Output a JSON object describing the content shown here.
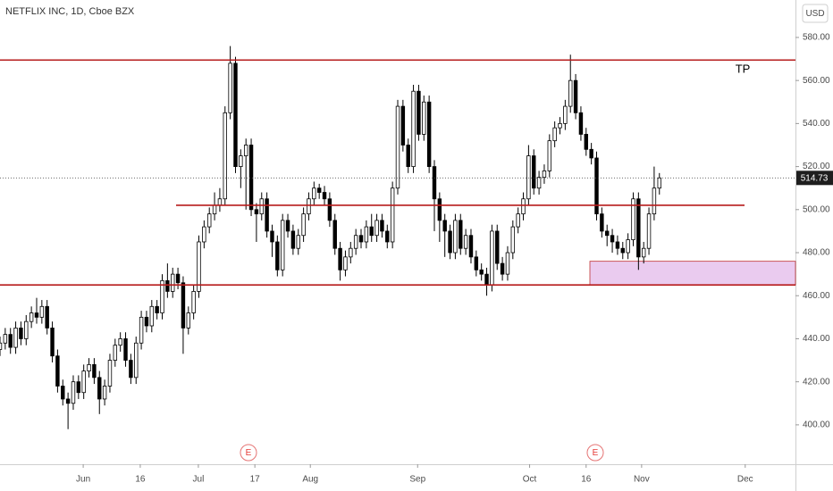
{
  "chart_data": {
    "type": "candlestick",
    "title": "NETFLIX INC, 1D, Cboe BZX",
    "currency": "USD",
    "annotation": "TP",
    "events": [
      "E",
      "E"
    ],
    "up_color": "#ffffff",
    "down_color": "#000000",
    "level_color": "#b71c1c",
    "zone_color": "#e8c6ee",
    "levels": [
      569.5,
      502,
      465
    ],
    "zone": [
      465,
      476
    ],
    "xlim": [
      0,
      152
    ],
    "ylim": [
      381.7,
      597.4
    ],
    "yticks": [
      {
        "value": 400,
        "label": "400.00"
      },
      {
        "value": 420,
        "label": "420.00"
      },
      {
        "value": 440,
        "label": "440.00"
      },
      {
        "value": 460,
        "label": "460.00"
      },
      {
        "value": 480,
        "label": "480.00"
      },
      {
        "value": 500,
        "label": "500.00"
      },
      {
        "value": 520,
        "label": "520.00"
      },
      {
        "value": 540,
        "label": "540.00"
      },
      {
        "value": 560,
        "label": "560.00"
      },
      {
        "value": 580,
        "label": "580.00"
      }
    ],
    "xticks": [
      {
        "value": 15.9,
        "label": "Jun"
      },
      {
        "value": 26.8,
        "label": "16"
      },
      {
        "value": 37.9,
        "label": "Jul"
      },
      {
        "value": 48.7,
        "label": "17"
      },
      {
        "value": 59.3,
        "label": "Aug"
      },
      {
        "value": 79.8,
        "label": "Sep"
      },
      {
        "value": 101.2,
        "label": "Oct"
      },
      {
        "value": 112,
        "label": "16"
      },
      {
        "value": 122.6,
        "label": "Nov"
      },
      {
        "value": 142.4,
        "label": "Dec"
      }
    ],
    "open": [
      435,
      438,
      442,
      436,
      445,
      440,
      448,
      452,
      450,
      455,
      445,
      432,
      418,
      412,
      410,
      420,
      415,
      425,
      428,
      422,
      412,
      418,
      430,
      437,
      440,
      430,
      422,
      438,
      450,
      446,
      455,
      452,
      467,
      462,
      470,
      466,
      445,
      452,
      462,
      485,
      492,
      498,
      502,
      505,
      545,
      568,
      520,
      525,
      530,
      500,
      498,
      505,
      490,
      485,
      472,
      495,
      490,
      482,
      488,
      498,
      505,
      510,
      508,
      505,
      495,
      482,
      472,
      478,
      482,
      488,
      485,
      492,
      488,
      495,
      490,
      485,
      510,
      548,
      530,
      520,
      555,
      535,
      550,
      520,
      505,
      495,
      490,
      480,
      495,
      482,
      488,
      478,
      472,
      470,
      465,
      490,
      475,
      470,
      480,
      492,
      498,
      505,
      525,
      510,
      515,
      518,
      532,
      538,
      540,
      548,
      560,
      545,
      535,
      528,
      524,
      498,
      490,
      488,
      485,
      482,
      480,
      486,
      505,
      478,
      482,
      498,
      510
    ],
    "high": [
      441,
      445,
      445,
      448,
      448,
      451,
      455,
      459,
      458,
      458,
      448,
      435,
      421,
      415,
      423,
      423,
      428,
      431,
      431,
      425,
      421,
      433,
      440,
      443,
      443,
      433,
      441,
      453,
      453,
      458,
      458,
      470,
      475,
      473,
      473,
      469,
      455,
      465,
      488,
      495,
      501,
      508,
      510,
      548,
      576,
      571,
      528,
      533,
      533,
      503,
      508,
      508,
      493,
      488,
      498,
      498,
      493,
      491,
      501,
      508,
      513,
      512,
      511,
      508,
      498,
      485,
      481,
      485,
      491,
      491,
      495,
      498,
      498,
      498,
      493,
      513,
      551,
      551,
      533,
      558,
      558,
      553,
      553,
      523,
      508,
      498,
      493,
      498,
      498,
      491,
      491,
      481,
      475,
      473,
      493,
      493,
      478,
      483,
      495,
      501,
      508,
      530,
      528,
      518,
      521,
      535,
      541,
      543,
      551,
      572,
      563,
      548,
      538,
      531,
      527,
      501,
      493,
      491,
      488,
      485,
      489,
      508,
      508,
      485,
      501,
      520,
      517
    ],
    "low": [
      432,
      435,
      433,
      433,
      437,
      437,
      445,
      447,
      447,
      442,
      429,
      415,
      409,
      398,
      407,
      412,
      412,
      422,
      419,
      405,
      409,
      415,
      427,
      434,
      427,
      419,
      419,
      435,
      443,
      443,
      449,
      449,
      459,
      459,
      463,
      433,
      442,
      449,
      459,
      482,
      489,
      495,
      499,
      502,
      542,
      517,
      510,
      500,
      497,
      485,
      495,
      487,
      478,
      469,
      469,
      487,
      479,
      479,
      485,
      495,
      502,
      505,
      502,
      492,
      479,
      467,
      469,
      475,
      479,
      482,
      482,
      485,
      485,
      487,
      482,
      482,
      507,
      527,
      517,
      517,
      532,
      532,
      517,
      490,
      485,
      478,
      477,
      477,
      479,
      479,
      475,
      469,
      467,
      460,
      462,
      472,
      467,
      467,
      477,
      489,
      495,
      502,
      507,
      507,
      512,
      515,
      529,
      535,
      537,
      545,
      542,
      532,
      525,
      521,
      495,
      487,
      483,
      480,
      479,
      477,
      477,
      483,
      472,
      475,
      479,
      495,
      507
    ],
    "close": [
      438,
      442,
      436,
      445,
      440,
      448,
      452,
      450,
      455,
      445,
      432,
      418,
      412,
      410,
      420,
      415,
      425,
      428,
      422,
      412,
      418,
      430,
      437,
      440,
      430,
      422,
      438,
      450,
      446,
      455,
      452,
      467,
      462,
      470,
      466,
      445,
      452,
      462,
      485,
      492,
      498,
      502,
      505,
      545,
      568,
      520,
      525,
      530,
      500,
      498,
      505,
      490,
      485,
      472,
      495,
      490,
      482,
      488,
      498,
      505,
      510,
      508,
      505,
      495,
      482,
      472,
      478,
      482,
      488,
      485,
      492,
      488,
      495,
      490,
      485,
      510,
      548,
      530,
      520,
      555,
      535,
      550,
      520,
      505,
      495,
      490,
      480,
      495,
      482,
      488,
      478,
      472,
      470,
      465,
      490,
      475,
      470,
      480,
      492,
      498,
      505,
      525,
      510,
      515,
      518,
      532,
      538,
      540,
      548,
      560,
      545,
      535,
      528,
      524,
      498,
      490,
      488,
      485,
      482,
      480,
      486,
      505,
      478,
      482,
      498,
      510,
      514.73
    ]
  }
}
